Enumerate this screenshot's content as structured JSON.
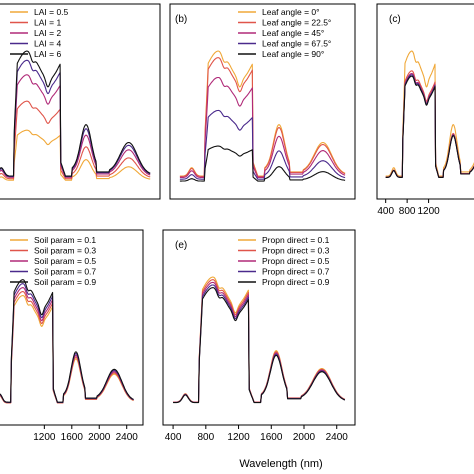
{
  "figure": {
    "xlabel": "Wavelength (nm)"
  },
  "chart_data": [
    {
      "type": "line",
      "panel": "a",
      "label": "",
      "xlim": [
        350,
        2550
      ],
      "xticks": [],
      "series": [
        {
          "name": "LAI = 0.5",
          "color": "#f0a838",
          "scale": 0.4
        },
        {
          "name": "LAI = 1",
          "color": "#e0554a",
          "scale": 0.62
        },
        {
          "name": "LAI = 2",
          "color": "#b02a78",
          "scale": 0.82
        },
        {
          "name": "LAI = 4",
          "color": "#4a2a8c",
          "scale": 0.93
        },
        {
          "name": "LAI = 6",
          "color": "#101010",
          "scale": 1.0
        }
      ]
    },
    {
      "type": "line",
      "panel": "b",
      "label": "(b)",
      "xlim": [
        350,
        2550
      ],
      "xticks": [],
      "series": [
        {
          "name": "Leaf angle = 0°",
          "color": "#f0a838",
          "scale": 1.0
        },
        {
          "name": "Leaf angle = 22.5°",
          "color": "#e0554a",
          "scale": 0.95
        },
        {
          "name": "Leaf angle = 45°",
          "color": "#b02a78",
          "scale": 0.8
        },
        {
          "name": "Leaf angle = 67.5°",
          "color": "#4a2a8c",
          "scale": 0.55
        },
        {
          "name": "Leaf angle = 90°",
          "color": "#101010",
          "scale": 0.28
        }
      ]
    },
    {
      "type": "line",
      "panel": "c",
      "label": "(c)",
      "xlim": [
        350,
        2550
      ],
      "xticks": [
        400,
        800,
        1200
      ],
      "series": [
        {
          "name": "",
          "color": "#f0a838",
          "scale": 1.0
        },
        {
          "name": "",
          "color": "#e0554a",
          "scale": 0.85
        },
        {
          "name": "",
          "color": "#b02a78",
          "scale": 0.83
        },
        {
          "name": "",
          "color": "#4a2a8c",
          "scale": 0.82
        },
        {
          "name": "",
          "color": "#101010",
          "scale": 0.81
        }
      ]
    },
    {
      "type": "line",
      "panel": "d",
      "label": "",
      "xlim": [
        350,
        2550
      ],
      "xticks": [
        1200,
        1600,
        2000,
        2400
      ],
      "series": [
        {
          "name": "Soil param = 0.1",
          "color": "#f0a838",
          "scale": 0.86
        },
        {
          "name": "Soil param = 0.3",
          "color": "#e0554a",
          "scale": 0.89
        },
        {
          "name": "Soil param = 0.5",
          "color": "#b02a78",
          "scale": 0.92
        },
        {
          "name": "Soil param = 0.7",
          "color": "#4a2a8c",
          "scale": 0.95
        },
        {
          "name": "Soil param = 0.9",
          "color": "#101010",
          "scale": 0.98
        }
      ]
    },
    {
      "type": "line",
      "panel": "e",
      "label": "(e)",
      "xlim": [
        350,
        2550
      ],
      "xticks": [
        400,
        800,
        1200,
        1600,
        2000,
        2400
      ],
      "series": [
        {
          "name": "Propn direct = 0.1",
          "color": "#f0a838",
          "scale": 1.0
        },
        {
          "name": "Propn direct = 0.3",
          "color": "#e0554a",
          "scale": 0.98
        },
        {
          "name": "Propn direct = 0.5",
          "color": "#b02a78",
          "scale": 0.96
        },
        {
          "name": "Propn direct = 0.7",
          "color": "#4a2a8c",
          "scale": 0.94
        },
        {
          "name": "Propn direct = 0.9",
          "color": "#101010",
          "scale": 0.92
        }
      ]
    }
  ]
}
